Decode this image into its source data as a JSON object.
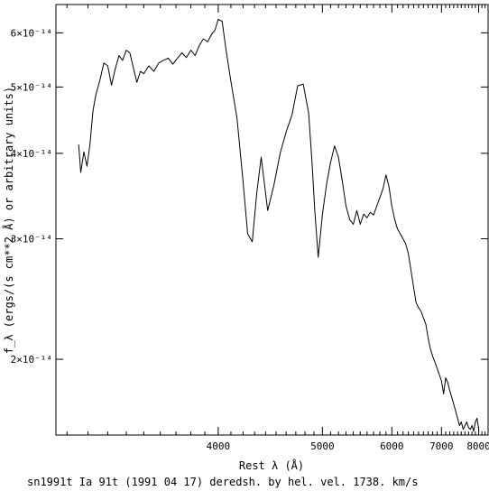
{
  "chart_data": {
    "type": "line",
    "xlabel": "Rest λ (Å)",
    "ylabel": "f_λ (ergs/(s cm**2 Å) or arbitrary units)",
    "caption": "sn1991t Ia 91t (1991 04 17) deredsh. by hel. vel.  1738. km/s",
    "x_scale": "reciprocal",
    "y_scale": "log",
    "xlim": [
      3050,
      8300
    ],
    "ylim": [
      1.55e-14,
      6.6e-14
    ],
    "x_ticks": [
      {
        "value": 4000,
        "label": "4000"
      },
      {
        "value": 5000,
        "label": "5000"
      },
      {
        "value": 6000,
        "label": "6000"
      },
      {
        "value": 7000,
        "label": "7000"
      },
      {
        "value": 8000,
        "label": "8000"
      }
    ],
    "y_ticks": [
      {
        "value": 6e-14,
        "label": "6×10⁻¹⁴"
      },
      {
        "value": 5e-14,
        "label": "5×10⁻¹⁴"
      },
      {
        "value": 4e-14,
        "label": "4×10⁻¹⁴"
      },
      {
        "value": 3e-14,
        "label": "3×10⁻¹⁴"
      },
      {
        "value": 2e-14,
        "label": "2×10⁻¹⁴"
      }
    ],
    "grid": false,
    "line_color": "#000000",
    "series": [
      {
        "x": [
          3155,
          3165,
          3180,
          3195,
          3210,
          3225,
          3240,
          3260,
          3280,
          3300,
          3320,
          3340,
          3360,
          3380,
          3400,
          3420,
          3440,
          3460,
          3480,
          3500,
          3530,
          3560,
          3590,
          3620,
          3650,
          3680,
          3710,
          3740,
          3770,
          3800,
          3830,
          3860,
          3890,
          3920,
          3950,
          3975,
          4000,
          4030,
          4060,
          4100,
          4150,
          4200,
          4240,
          4280,
          4320,
          4360,
          4420,
          4480,
          4540,
          4600,
          4660,
          4720,
          4780,
          4840,
          4880,
          4910,
          4950,
          5000,
          5050,
          5100,
          5150,
          5200,
          5250,
          5300,
          5350,
          5400,
          5450,
          5500,
          5550,
          5600,
          5650,
          5700,
          5750,
          5800,
          5850,
          5900,
          5950,
          6000,
          6050,
          6100,
          6150,
          6200,
          6250,
          6300,
          6350,
          6400,
          6450,
          6500,
          6550,
          6600,
          6650,
          6700,
          6750,
          6800,
          6850,
          6900,
          6950,
          7000,
          7050,
          7100,
          7150,
          7200,
          7250,
          7300,
          7350,
          7400,
          7450,
          7500,
          7550,
          7600,
          7650,
          7700,
          7750,
          7800,
          7850,
          7900,
          7950,
          8000
        ],
        "y": [
          4.12e-14,
          3.75e-14,
          4.02e-14,
          3.83e-14,
          4.12e-14,
          4.62e-14,
          4.88e-14,
          5.12e-14,
          5.42e-14,
          5.37e-14,
          5.03e-14,
          5.32e-14,
          5.56e-14,
          5.47e-14,
          5.66e-14,
          5.61e-14,
          5.33e-14,
          5.08e-14,
          5.27e-14,
          5.23e-14,
          5.37e-14,
          5.27e-14,
          5.42e-14,
          5.47e-14,
          5.51e-14,
          5.4e-14,
          5.51e-14,
          5.61e-14,
          5.52e-14,
          5.66e-14,
          5.56e-14,
          5.75e-14,
          5.88e-14,
          5.82e-14,
          5.97e-14,
          6.05e-14,
          6.28e-14,
          6.24e-14,
          5.68e-14,
          5.1e-14,
          4.5e-14,
          3.65e-14,
          3.05e-14,
          2.97e-14,
          3.5e-14,
          3.95e-14,
          3.3e-14,
          3.6e-14,
          4e-14,
          4.3e-14,
          4.55e-14,
          5.02e-14,
          5.05e-14,
          4.58e-14,
          3.85e-14,
          3.3e-14,
          2.82e-14,
          3.25e-14,
          3.6e-14,
          3.88e-14,
          4.1e-14,
          3.95e-14,
          3.65e-14,
          3.35e-14,
          3.2e-14,
          3.15e-14,
          3.3e-14,
          3.15e-14,
          3.26e-14,
          3.22e-14,
          3.28e-14,
          3.25e-14,
          3.35e-14,
          3.45e-14,
          3.55e-14,
          3.72e-14,
          3.58e-14,
          3.35e-14,
          3.2e-14,
          3.1e-14,
          3.05e-14,
          3e-14,
          2.95e-14,
          2.85e-14,
          2.7e-14,
          2.55e-14,
          2.42e-14,
          2.38e-14,
          2.35e-14,
          2.3e-14,
          2.25e-14,
          2.15e-14,
          2.07e-14,
          2.02e-14,
          1.98e-14,
          1.94e-14,
          1.9e-14,
          1.86e-14,
          1.78e-14,
          1.88e-14,
          1.85e-14,
          1.8e-14,
          1.76e-14,
          1.72e-14,
          1.68e-14,
          1.64e-14,
          1.6e-14,
          1.62e-14,
          1.58e-14,
          1.6e-14,
          1.62e-14,
          1.59e-14,
          1.58e-14,
          1.6e-14,
          1.57e-14,
          1.62e-14,
          1.64e-14,
          1.58e-14
        ]
      }
    ]
  }
}
